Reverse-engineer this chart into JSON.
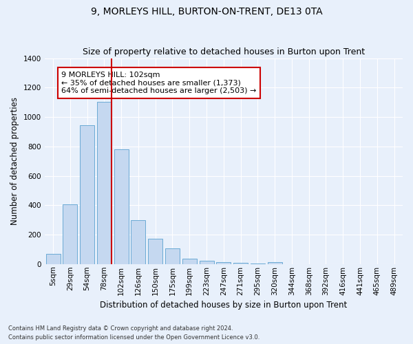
{
  "title": "9, MORLEYS HILL, BURTON-ON-TRENT, DE13 0TA",
  "subtitle": "Size of property relative to detached houses in Burton upon Trent",
  "xlabel": "Distribution of detached houses by size in Burton upon Trent",
  "ylabel": "Number of detached properties",
  "footnote1": "Contains HM Land Registry data © Crown copyright and database right 2024.",
  "footnote2": "Contains public sector information licensed under the Open Government Licence v3.0.",
  "categories": [
    "5sqm",
    "29sqm",
    "54sqm",
    "78sqm",
    "102sqm",
    "126sqm",
    "150sqm",
    "175sqm",
    "199sqm",
    "223sqm",
    "247sqm",
    "271sqm",
    "295sqm",
    "320sqm",
    "344sqm",
    "368sqm",
    "392sqm",
    "416sqm",
    "441sqm",
    "465sqm",
    "489sqm"
  ],
  "values": [
    70,
    405,
    945,
    1105,
    780,
    300,
    170,
    105,
    35,
    20,
    15,
    10,
    5,
    12,
    0,
    0,
    0,
    0,
    0,
    0,
    0
  ],
  "bar_color": "#c5d8f0",
  "bar_edge_color": "#6aaad4",
  "highlight_index": 3,
  "highlight_color": "#cc0000",
  "annotation_text": "9 MORLEYS HILL: 102sqm\n← 35% of detached houses are smaller (1,373)\n64% of semi-detached houses are larger (2,503) →",
  "annotation_box_color": "#ffffff",
  "annotation_box_edge": "#cc0000",
  "ylim": [
    0,
    1400
  ],
  "yticks": [
    0,
    200,
    400,
    600,
    800,
    1000,
    1200,
    1400
  ],
  "bg_color": "#e8f0fb",
  "grid_color": "#ffffff",
  "title_fontsize": 10,
  "subtitle_fontsize": 9,
  "axis_label_fontsize": 8.5,
  "tick_fontsize": 7.5,
  "annotation_fontsize": 8
}
